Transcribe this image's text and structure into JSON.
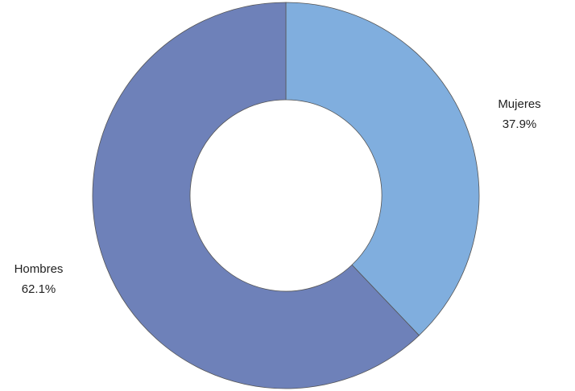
{
  "chart_data": {
    "type": "donut",
    "categories": [
      "Mujeres",
      "Hombres"
    ],
    "values": [
      37.9,
      62.1
    ],
    "value_labels": [
      "37.9%",
      "62.1%"
    ],
    "colors": [
      "#80aede",
      "#6e81b9"
    ]
  }
}
